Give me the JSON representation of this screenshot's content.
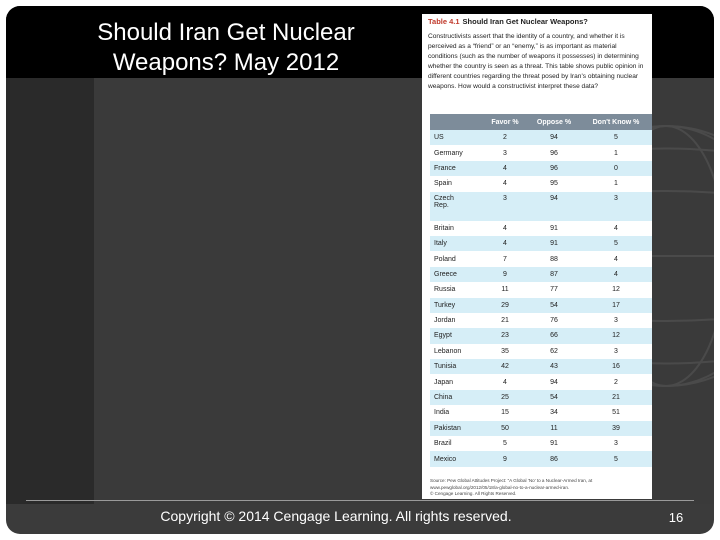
{
  "slide": {
    "title_line1": "Should Iran Get Nuclear",
    "title_line2": "Weapons? May 2012",
    "copyright": "Copyright © 2014 Cengage Learning. All rights reserved.",
    "page_number": "16"
  },
  "table": {
    "number": "Table 4.1",
    "caption": "Should Iran Get Nuclear Weapons?",
    "description": "Constructivists assert that the identity of a country, and whether it is perceived as a “friend” or an “enemy,” is as important as material conditions (such as the number of weapons it possesses) in determining whether the country is seen as a threat. This table shows public opinion in different countries regarding the threat posed by Iran's obtaining nuclear weapons. How would a constructivist interpret these data?",
    "headers": [
      "",
      "Favor %",
      "Oppose %",
      "Don't Know %"
    ],
    "rows": [
      [
        "US",
        "2",
        "94",
        "5"
      ],
      [
        "Germany",
        "3",
        "96",
        "1"
      ],
      [
        "France",
        "4",
        "96",
        "0"
      ],
      [
        "Spain",
        "4",
        "95",
        "1"
      ],
      [
        "Czech Rep.",
        "3",
        "94",
        "3"
      ],
      [
        "Britain",
        "4",
        "91",
        "4"
      ],
      [
        "Italy",
        "4",
        "91",
        "5"
      ],
      [
        "Poland",
        "7",
        "88",
        "4"
      ],
      [
        "Greece",
        "9",
        "87",
        "4"
      ],
      [
        "Russia",
        "11",
        "77",
        "12"
      ],
      [
        "Turkey",
        "29",
        "54",
        "17"
      ],
      [
        "Jordan",
        "21",
        "76",
        "3"
      ],
      [
        "Egypt",
        "23",
        "66",
        "12"
      ],
      [
        "Lebanon",
        "35",
        "62",
        "3"
      ],
      [
        "Tunisia",
        "42",
        "43",
        "16"
      ],
      [
        "Japan",
        "4",
        "94",
        "2"
      ],
      [
        "China",
        "25",
        "54",
        "21"
      ],
      [
        "India",
        "15",
        "34",
        "51"
      ],
      [
        "Pakistan",
        "50",
        "11",
        "39"
      ],
      [
        "Brazil",
        "5",
        "91",
        "3"
      ],
      [
        "Mexico",
        "9",
        "86",
        "5"
      ]
    ],
    "source_line1": "Source: Pew Global Attitudes Project: “A Global ‘No’ to a Nuclear-Armed Iran, at",
    "source_line2": "www.pewglobal.org/2012/05/18/a-global-no-to-a-nuclear-armed-iran.",
    "source_line3": "© Cengage Learning. All Rights Reserved."
  }
}
